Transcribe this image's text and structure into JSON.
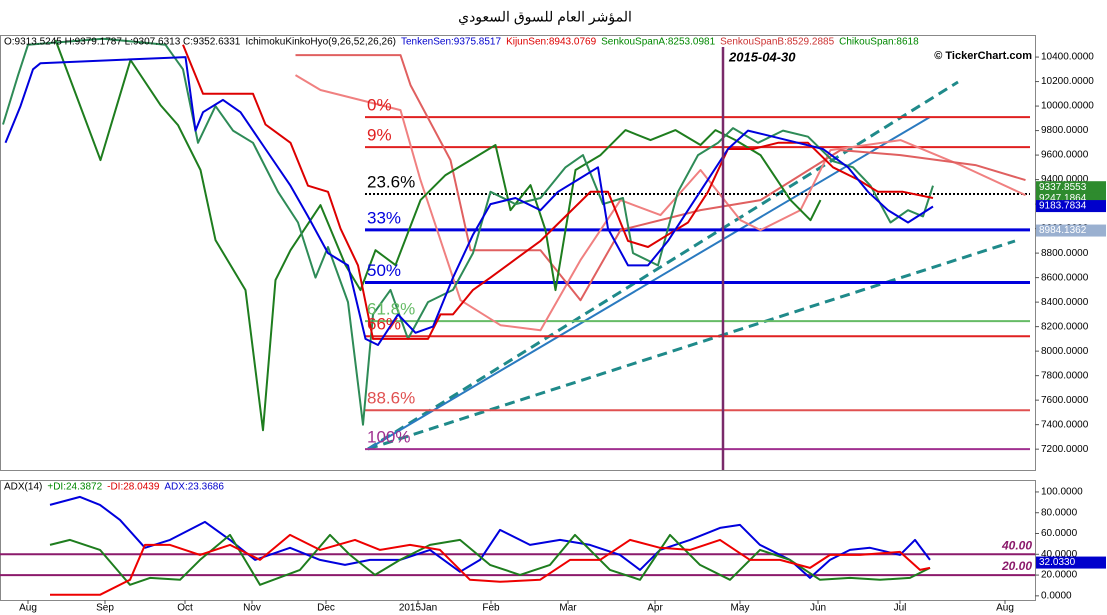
{
  "title": "المؤشر العام للسوق السعودي",
  "watermark": "© TickerChart.com",
  "chart_data": [
    {
      "type": "line",
      "header": [
        {
          "text": "O:9313.5245 H:9379.1787 L:9307.6313 C:9352.6331",
          "color": "#000000"
        },
        {
          "text": "IchimokuKinkoHyo(9,26,52,26,26)",
          "color": "#000000"
        },
        {
          "text": "TenkenSen:9375.8517",
          "color": "#0000cc"
        },
        {
          "text": "KijunSen:8943.0769",
          "color": "#dd0000"
        },
        {
          "text": "SenkouSpanA:8253.0981",
          "color": "#008800"
        },
        {
          "text": "SenkouSpanB:8529.2885",
          "color": "#cc3333"
        },
        {
          "text": "ChikouSpan:8618",
          "color": "#008800"
        }
      ],
      "xlim": [
        -11.2,
        402.8
      ],
      "xticks": [
        {
          "value": 0,
          "label": "Aug"
        },
        {
          "value": 30.8,
          "label": "Sep"
        },
        {
          "value": 62.8,
          "label": "Oct"
        },
        {
          "value": 89.6,
          "label": "Nov"
        },
        {
          "value": 119.2,
          "label": "Dec"
        },
        {
          "value": 156,
          "label": "2015Jan"
        },
        {
          "value": 185.2,
          "label": "Feb"
        },
        {
          "value": 216,
          "label": "Mar"
        },
        {
          "value": 250.8,
          "label": "Apr"
        },
        {
          "value": 284.8,
          "label": "May"
        },
        {
          "value": 316,
          "label": "Jun"
        },
        {
          "value": 348.8,
          "label": "Jul"
        },
        {
          "value": 390.8,
          "label": "Aug"
        }
      ],
      "ylim": [
        7030,
        10580
      ],
      "yticks": [
        {
          "value": 7200,
          "label": "7200.0000"
        },
        {
          "value": 7400,
          "label": "7400.0000"
        },
        {
          "value": 7600,
          "label": "7600.0000"
        },
        {
          "value": 7800,
          "label": "7800.0000"
        },
        {
          "value": 8000,
          "label": "8000.0000"
        },
        {
          "value": 8200,
          "label": "8200.0000"
        },
        {
          "value": 8400,
          "label": "8400.0000"
        },
        {
          "value": 8600,
          "label": "8600.0000"
        },
        {
          "value": 8800,
          "label": "8800.0000"
        },
        {
          "value": 9000,
          "label": "9000.0000"
        },
        {
          "value": 9200,
          "label": "9200.0000"
        },
        {
          "value": 9400,
          "label": "9400.0000"
        },
        {
          "value": 9600,
          "label": "9600.0000"
        },
        {
          "value": 9800,
          "label": "9800.0000"
        },
        {
          "value": 10000,
          "label": "10000.0000"
        },
        {
          "value": 10200,
          "label": "10200.0000"
        },
        {
          "value": 10400,
          "label": "10400.0000"
        }
      ],
      "series": [
        {
          "color": "#f08080",
          "x": [
            107,
            117,
            149,
            157,
            173,
            189,
            205,
            221,
            237,
            253,
            269,
            285,
            293,
            309,
            321,
            349,
            373,
            399
          ],
          "values": [
            10253,
            10131,
            9967,
            9396,
            8416,
            8212,
            8171,
            8743,
            9233,
            9110,
            9478,
            9069,
            8988,
            9151,
            9641,
            9722,
            9518,
            9273
          ]
        },
        {
          "color": "#e06060",
          "x": [
            107,
            149,
            153,
            169,
            177,
            205,
            221,
            237,
            269,
            293,
            325,
            349,
            379,
            399
          ],
          "values": [
            10416,
            10416,
            10171,
            9559,
            8824,
            8824,
            8416,
            8988,
            9151,
            9233,
            9641,
            9600,
            9518,
            9396
          ]
        },
        {
          "color": "#1e7d1e",
          "x": [
            11,
            29,
            41,
            53,
            60,
            69,
            75,
            87,
            94,
            99,
            105,
            117,
            127,
            133,
            139,
            147,
            157,
            167,
            177,
            187,
            193,
            201,
            207,
            211,
            219,
            229,
            239,
            249,
            259,
            269,
            275,
            283,
            293,
            305,
            313,
            317
          ],
          "values": [
            10539,
            9559,
            10376,
            10008,
            9845,
            9478,
            8906,
            8498,
            7355,
            8580,
            8824,
            9192,
            8702,
            8498,
            8824,
            8702,
            9233,
            9437,
            9559,
            9682,
            9151,
            9355,
            8988,
            8498,
            9478,
            9600,
            9804,
            9722,
            9804,
            9682,
            9804,
            9722,
            9600,
            9233,
            9069,
            9233
          ]
        },
        {
          "color": "#2e8b57",
          "x": [
            -10,
            -4,
            0,
            30,
            55,
            62,
            68,
            75,
            82,
            90,
            100,
            108,
            115,
            120,
            128,
            134,
            138,
            145,
            152,
            160,
            170,
            178,
            185,
            195,
            205,
            215,
            222,
            230,
            238,
            242,
            252,
            260,
            268,
            276,
            282,
            292,
            302,
            312,
            322,
            330,
            337,
            345,
            352,
            358,
            362
          ],
          "values": [
            9850,
            10250,
            10500,
            10550,
            10500,
            10300,
            9700,
            10000,
            9800,
            9700,
            9300,
            9050,
            8600,
            8850,
            8400,
            7400,
            8300,
            8500,
            8100,
            8400,
            8500,
            8800,
            9300,
            9200,
            9250,
            9500,
            9600,
            9200,
            9250,
            8800,
            8700,
            9300,
            9600,
            9700,
            9820,
            9700,
            9800,
            9750,
            9550,
            9500,
            9350,
            9050,
            9150,
            9100,
            9350
          ]
        },
        {
          "color": "#dd0000",
          "x": [
            62,
            70,
            80,
            90,
            95,
            105,
            112,
            120,
            125,
            132,
            138,
            150,
            160,
            165,
            170,
            178,
            185,
            195,
            205,
            215,
            225,
            232,
            240,
            248,
            256,
            264,
            272,
            280,
            290,
            300,
            312,
            322,
            332,
            340,
            350,
            362
          ],
          "values": [
            10500,
            10100,
            10100,
            10100,
            9850,
            9700,
            9350,
            9300,
            9000,
            8700,
            8100,
            8100,
            8100,
            8300,
            8300,
            8500,
            8600,
            8750,
            8900,
            9100,
            9300,
            9300,
            8900,
            8850,
            8950,
            9050,
            9300,
            9650,
            9650,
            9700,
            9700,
            9500,
            9400,
            9300,
            9300,
            9250
          ]
        },
        {
          "color": "#0000dd",
          "x": [
            -9,
            -3,
            2,
            5,
            63,
            67,
            70,
            78,
            85,
            95,
            105,
            112,
            120,
            128,
            135,
            140,
            148,
            155,
            162,
            170,
            178,
            185,
            195,
            205,
            212,
            220,
            228,
            232,
            240,
            248,
            256,
            264,
            272,
            280,
            288,
            298,
            308,
            318,
            328,
            336,
            344,
            352,
            362
          ],
          "values": [
            9700,
            10000,
            10300,
            10350,
            10400,
            9800,
            9950,
            10050,
            9950,
            9650,
            9350,
            9100,
            8800,
            8700,
            8100,
            8050,
            8300,
            8150,
            8200,
            8600,
            8950,
            9200,
            9250,
            9150,
            9300,
            9400,
            9500,
            9000,
            8700,
            8700,
            8900,
            9150,
            9400,
            9650,
            9800,
            9750,
            9700,
            9650,
            9500,
            9300,
            9150,
            9050,
            9180
          ]
        }
      ],
      "levels": [
        {
          "label": "0%",
          "value": 9910,
          "color": "#e02020"
        },
        {
          "label": "9%",
          "value": 9665,
          "color": "#e02020"
        },
        {
          "label": "23.6%",
          "value": 9282,
          "color": "#000000"
        },
        {
          "label": "33%",
          "value": 8990,
          "color": "#0000dd"
        },
        {
          "label": "50%",
          "value": 8560,
          "color": "#0000dd"
        },
        {
          "label": "61.8%",
          "value": 8245,
          "color": "#66bb66"
        },
        {
          "label": "66%",
          "value": 8122,
          "color": "#e02020"
        },
        {
          "label": "88.6%",
          "value": 7518,
          "color": "#e05050"
        },
        {
          "label": "100%",
          "value": 7200,
          "color": "#a03090"
        }
      ],
      "price_labels": [
        {
          "value": 9337.8553,
          "color": "#2e8b2e"
        },
        {
          "value": 9247.1864,
          "color": "#2e8b2e"
        },
        {
          "value": 9183.7834,
          "color": "#0000cc"
        },
        {
          "value": 8984.1362,
          "color": "#9ab0d0"
        }
      ],
      "marker": {
        "label": "2015-04-30",
        "x": 278,
        "color": "#7a2a6a"
      }
    },
    {
      "type": "line",
      "header": [
        {
          "text": "ADX(14)",
          "color": "#000000"
        },
        {
          "text": "+DI:24.3872",
          "color": "#008800"
        },
        {
          "text": "-DI:28.0439",
          "color": "#dd0000"
        },
        {
          "text": "ADX:23.3686",
          "color": "#0000cc"
        }
      ],
      "xlim": [
        -11.2,
        402.8
      ],
      "ylim": [
        -4,
        111.5
      ],
      "yticks": [
        {
          "value": 0,
          "label": "0.0000"
        },
        {
          "value": 20,
          "label": "20.0000"
        },
        {
          "value": 40,
          "label": "40.0000"
        },
        {
          "value": 60,
          "label": "60.0000"
        },
        {
          "value": 80,
          "label": "80.0000"
        },
        {
          "value": 100,
          "label": "100.0000"
        }
      ],
      "series": [
        {
          "color": "#0000dd",
          "x": [
            8.8,
            20.8,
            28.8,
            36.8,
            46.8,
            56.8,
            70.8,
            80.8,
            90.8,
            104.8,
            116.8,
            126.8,
            136.8,
            148.8,
            160.8,
            172.8,
            180.8,
            188.8,
            200.8,
            212.8,
            224.8,
            236.8,
            244.8,
            252.8,
            264.8,
            276.8,
            284.8,
            292.8,
            304.8,
            312.8,
            320.8,
            328.8,
            336.8,
            348.8,
            354.8,
            360.8
          ],
          "values": [
            87.5,
            95.2,
            87.5,
            73.1,
            46.2,
            53.8,
            71.2,
            53.8,
            34.6,
            46.2,
            34.6,
            29.8,
            34.6,
            34.6,
            44.2,
            23.1,
            34.6,
            63.5,
            49,
            53.8,
            49,
            39.4,
            25,
            44.2,
            53.8,
            65.4,
            68.3,
            49,
            34.6,
            17.3,
            34.6,
            44.2,
            46.2,
            39.4,
            53.8,
            34.6
          ]
        },
        {
          "color": "#1e7d1e",
          "x": [
            8.8,
            16.8,
            28.8,
            40.8,
            48.8,
            60.8,
            68.8,
            80.8,
            92.8,
            108.8,
            120.8,
            128.8,
            138.8,
            148.8,
            160.8,
            172.8,
            184.8,
            196.8,
            208.8,
            218.8,
            232.8,
            244.8,
            256.8,
            268.8,
            280.8,
            292.8,
            304.8,
            316.8,
            328.8,
            340.8,
            352.8,
            360.8
          ],
          "values": [
            49,
            53.8,
            44.2,
            10.6,
            17.3,
            15.4,
            34.6,
            58.7,
            10.6,
            25,
            58.7,
            39.4,
            20.2,
            34.6,
            49,
            53.8,
            29.8,
            20.2,
            29.8,
            58.7,
            25,
            15.4,
            58.7,
            29.8,
            15.4,
            44.2,
            34.6,
            15.4,
            17.3,
            15.4,
            17.3,
            26.9
          ]
        },
        {
          "color": "#ee0000",
          "x": [
            8.8,
            28.8,
            40.8,
            46.8,
            56.8,
            68.8,
            80.8,
            92.8,
            104.8,
            116.8,
            130.8,
            140.8,
            152.8,
            164.8,
            176.8,
            188.8,
            204.8,
            216.8,
            228.8,
            240.8,
            252.8,
            264.8,
            276.8,
            288.8,
            300.8,
            312.8,
            320.8,
            332.8,
            348.8,
            356.8,
            360.8
          ],
          "values": [
            1,
            1,
            15.4,
            49,
            49,
            39.4,
            49,
            34.6,
            58.7,
            44.2,
            53.8,
            44.2,
            49,
            44.2,
            15.4,
            13.5,
            15.4,
            34.6,
            34.6,
            53.8,
            46.2,
            44.2,
            53.8,
            34.6,
            34.6,
            26.9,
            39.4,
            39.4,
            42.3,
            25,
            26.9
          ]
        }
      ],
      "levels": [
        {
          "value": 40,
          "label": "40.00",
          "color": "#8b1a6b"
        },
        {
          "value": 20,
          "label": "20.00",
          "color": "#8b1a6b"
        }
      ],
      "price_labels": [
        {
          "value": 32.033,
          "label": "32.0330",
          "color": "#0000cc"
        }
      ]
    }
  ]
}
